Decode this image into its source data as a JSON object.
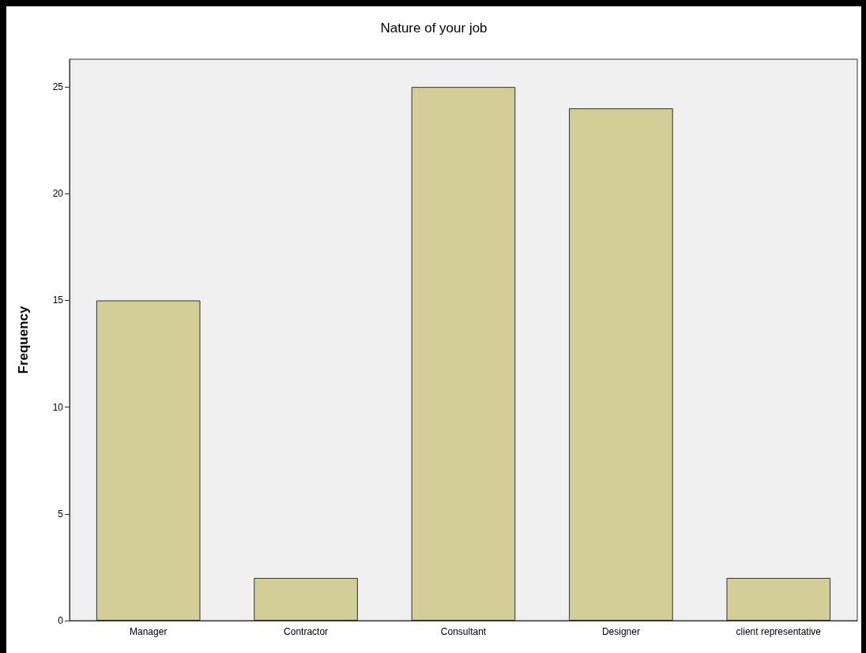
{
  "chart_data": {
    "type": "bar",
    "title": "Nature of your job",
    "ylabel": "Frequency",
    "categories": [
      "Manager",
      "Contractor",
      "Consultant",
      "Designer",
      "client representative"
    ],
    "values": [
      15,
      2,
      25,
      24,
      2
    ],
    "color": "#d3ce97",
    "ylim": [
      0,
      26.3
    ],
    "yticks": [
      0,
      5,
      10,
      15,
      20,
      25
    ],
    "grid": false
  }
}
